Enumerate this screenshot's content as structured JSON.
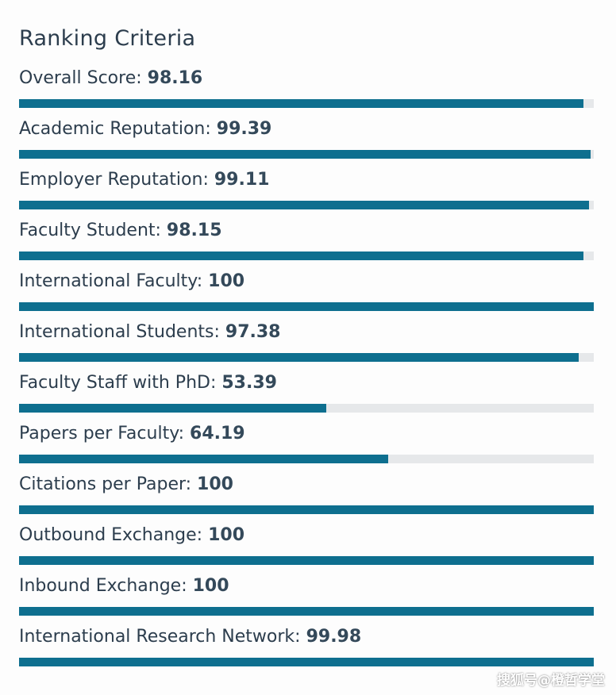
{
  "title": "Ranking Criteria",
  "criteria": [
    {
      "label": "Overall Score:",
      "value": "98.16",
      "percent": 98.16
    },
    {
      "label": "Academic Reputation:",
      "value": "99.39",
      "percent": 99.39
    },
    {
      "label": "Employer Reputation:",
      "value": "99.11",
      "percent": 99.11
    },
    {
      "label": "Faculty Student:",
      "value": "98.15",
      "percent": 98.15
    },
    {
      "label": "International Faculty:",
      "value": "100",
      "percent": 100
    },
    {
      "label": "International Students:",
      "value": "97.38",
      "percent": 97.38
    },
    {
      "label": "Faculty Staff with PhD:",
      "value": "53.39",
      "percent": 53.39
    },
    {
      "label": "Papers per Faculty:",
      "value": "64.19",
      "percent": 64.19
    },
    {
      "label": "Citations per Paper:",
      "value": "100",
      "percent": 100
    },
    {
      "label": "Outbound Exchange:",
      "value": "100",
      "percent": 100
    },
    {
      "label": "Inbound Exchange:",
      "value": "100",
      "percent": 100
    },
    {
      "label": "International Research Network:",
      "value": "99.98",
      "percent": 99.98
    }
  ],
  "watermark": "搜狐号@橙哲学堂",
  "colors": {
    "bar_fill": "#0e6f8f",
    "bar_track": "#e6e8ea",
    "text": "#2c3d4d"
  }
}
